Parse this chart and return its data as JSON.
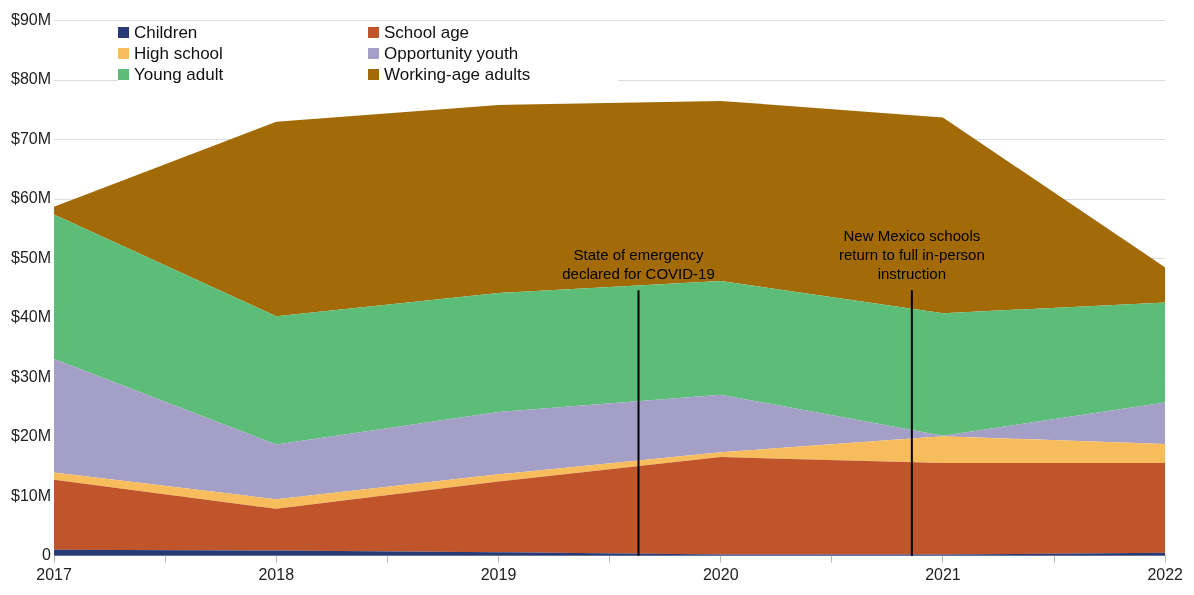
{
  "chart_data": {
    "type": "area",
    "stacked": true,
    "x": [
      2017,
      2018,
      2019,
      2020,
      2021,
      2022
    ],
    "series": [
      {
        "name": "Children",
        "color": "#283a75",
        "values": [
          1.0,
          0.9,
          0.6,
          0.2,
          0.2,
          0.5
        ]
      },
      {
        "name": "School age",
        "color": "#c0542a",
        "values": [
          11.8,
          7.0,
          11.9,
          16.4,
          15.4,
          15.1
        ]
      },
      {
        "name": "High school",
        "color": "#f7bd5c",
        "values": [
          1.2,
          1.6,
          1.2,
          0.8,
          4.5,
          3.2
        ]
      },
      {
        "name": "Opportunity youth",
        "color": "#a49fc6",
        "values": [
          19.1,
          9.2,
          10.5,
          9.7,
          0.1,
          7.0
        ]
      },
      {
        "name": "Young adult",
        "color": "#5bbd78",
        "values": [
          24.3,
          21.6,
          20.0,
          19.1,
          20.6,
          16.8
        ]
      },
      {
        "name": "Working-age adults",
        "color": "#a36b08",
        "values": [
          1.3,
          32.7,
          31.6,
          30.3,
          32.9,
          5.9
        ]
      }
    ],
    "xlim": [
      2017,
      2022
    ],
    "xticks": [
      2017,
      {
        "value": 2017.5,
        "label": null
      },
      2018,
      {
        "value": 2018.5,
        "label": null
      },
      2019,
      {
        "value": 2019.5,
        "label": null
      },
      2020,
      {
        "value": 2020.5,
        "label": null
      },
      2021,
      {
        "value": 2021.5,
        "label": null
      },
      2022
    ],
    "ylim": [
      0,
      90
    ],
    "yticks": [
      {
        "value": 0,
        "label": "0"
      },
      {
        "value": 10,
        "label": "$10M"
      },
      {
        "value": 20,
        "label": "$20M"
      },
      {
        "value": 30,
        "label": "$30M"
      },
      {
        "value": 40,
        "label": "$40M"
      },
      {
        "value": 50,
        "label": "$50M"
      },
      {
        "value": 60,
        "label": "$60M"
      },
      {
        "value": 70,
        "label": "$70M"
      },
      {
        "value": 80,
        "label": "$80M"
      },
      {
        "value": 90,
        "label": "$90M"
      }
    ],
    "grid": "y",
    "legend": "top left",
    "ref_lines": [
      {
        "axis": "x",
        "value": 2019.63,
        "label": "State of emergency\ndeclared for COVID-19",
        "color": "#000000"
      },
      {
        "axis": "x",
        "value": 2020.86,
        "label": "New Mexico schools\nreturn to full in-person\ninstruction",
        "color": "#000000"
      }
    ]
  }
}
